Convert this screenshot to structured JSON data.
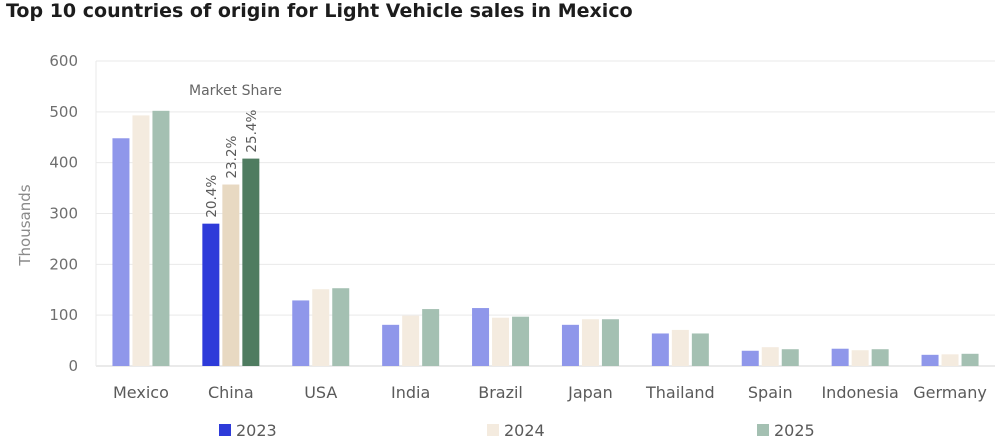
{
  "chart_data": {
    "type": "bar",
    "title": "Top 10 countries of origin for Light Vehicle sales in Mexico",
    "xlabel": "",
    "ylabel": "Thousands",
    "ylim": [
      0,
      600
    ],
    "yticks": [
      0,
      100,
      200,
      300,
      400,
      500,
      600
    ],
    "grid": true,
    "categories": [
      "Mexico",
      "China",
      "USA",
      "India",
      "Brazil",
      "Japan",
      "Thailand",
      "Spain",
      "Indonesia",
      "Germany"
    ],
    "series": [
      {
        "name": "2023",
        "values": [
          448,
          280,
          129,
          81,
          114,
          81,
          64,
          30,
          34,
          22
        ]
      },
      {
        "name": "2024",
        "values": [
          493,
          357,
          151,
          99,
          95,
          92,
          71,
          37,
          31,
          23
        ]
      },
      {
        "name": "2025",
        "values": [
          502,
          408,
          153,
          112,
          97,
          92,
          64,
          33,
          33,
          24
        ]
      }
    ],
    "annotation": "Market Share",
    "market_share_labels": [
      "20.4%",
      "23.2%",
      "25.4%"
    ],
    "colors": {
      "2023": "#8f97ea",
      "2024": "#f4ebdf",
      "2025": "#a4c0b2",
      "highlight_2023": "#2e3bd9",
      "highlight_2024": "#e8d9c2",
      "highlight_2025": "#4f7c60",
      "grid": "#e9e9e9",
      "axis": "#d6d6d6"
    },
    "highlight_category": "China",
    "legend_position": "bottom"
  }
}
